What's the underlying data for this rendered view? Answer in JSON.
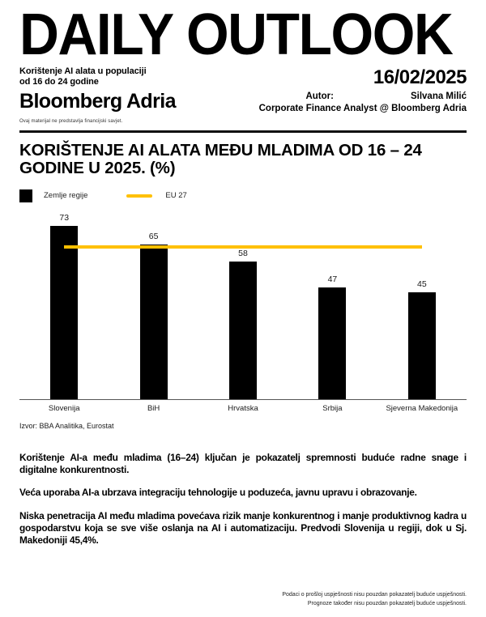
{
  "masthead": {
    "title": "DAILY OUTLOOK",
    "subtitle_line1": "Korištenje AI alata u populaciji",
    "subtitle_line2": "od 16 do 24 godine",
    "date": "16/02/2025",
    "brand": "Bloomberg Adria",
    "author_label": "Autor:",
    "author_name": "Silvana Milić",
    "author_role": "Corporate Finance Analyst @ Bloomberg Adria",
    "disclaimer": "Ovaj materijal ne predstavlja financijski savjet."
  },
  "chart_data": {
    "type": "bar",
    "title": "Korištenje AI alata među mladima od 16 – 24 godine u 2025. (%)",
    "categories": [
      "Slovenija",
      "BiH",
      "Hrvatska",
      "Srbija",
      "Sjeverna Makedonija"
    ],
    "values": [
      73,
      65,
      58,
      47,
      45
    ],
    "series_label": "Zemlje regije",
    "bar_color": "#000000",
    "reference_line": {
      "label": "EU 27",
      "value": 64,
      "color": "#FFC000"
    },
    "ylim": [
      0,
      80
    ],
    "data_labels": true,
    "grid": false,
    "legend_position": "top-left",
    "source": "Izvor: BBA Analitika, Eurostat"
  },
  "body": {
    "paragraphs": [
      "Korištenje AI-a među mladima (16–24) ključan je pokazatelj spremnosti buduće radne snage i digitalne konkurentnosti.",
      "Veća uporaba AI-a ubrzava integraciju tehnologije u poduzeća, javnu upravu i obrazovanje.",
      "Niska penetracija AI među mladima povećava rizik manje konkurentnog i manje produktivnog kadra u gospodarstvu koja se sve više oslanja na AI i automatizaciju. Predvodi Slovenija u regiji, dok u Sj. Makedoniji 45,4%."
    ]
  },
  "footer": {
    "disclaimer_line1": "Podaci o prošloj uspješnosti nisu pouzdan pokazatelj buduće uspješnosti.",
    "disclaimer_line2": "Prognoze također nisu pouzdan pokazatelj buduće uspješnosti."
  }
}
